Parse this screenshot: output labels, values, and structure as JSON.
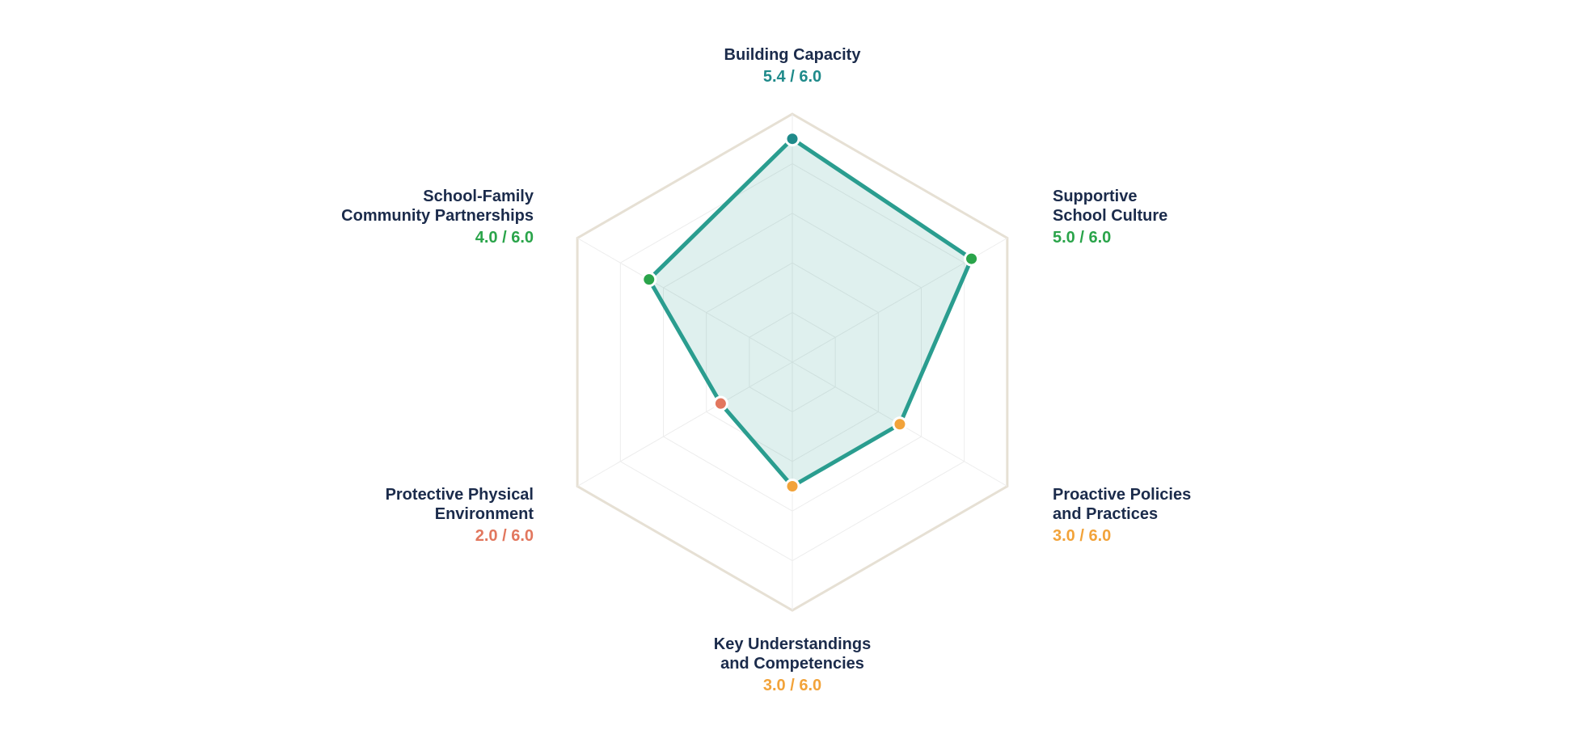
{
  "colors": {
    "outline": "#e6e0d4",
    "grid": "#ededed",
    "series_line": "#2a9d8f",
    "series_fill": "#2a9d8f",
    "label_text": "#1b2b4b",
    "teal": "#1f8a8a",
    "green": "#2aa44a",
    "orange": "#f2a33a",
    "salmon": "#e2775e"
  },
  "chart_data": {
    "type": "radar",
    "title": "",
    "max": 6,
    "grid_levels": 5,
    "legend": "none",
    "axes": [
      {
        "label_lines": [
          "Building Capacity"
        ],
        "value": 5.4,
        "score_text": "5.4 / 6.0",
        "color": "#1f8a8a"
      },
      {
        "label_lines": [
          "Supportive",
          "School Culture"
        ],
        "value": 5.0,
        "score_text": "5.0 / 6.0",
        "color": "#2aa44a"
      },
      {
        "label_lines": [
          "Proactive Policies",
          "and Practices"
        ],
        "value": 3.0,
        "score_text": "3.0 / 6.0",
        "color": "#f2a33a"
      },
      {
        "label_lines": [
          "Key Understandings",
          "and Competencies"
        ],
        "value": 3.0,
        "score_text": "3.0 / 6.0",
        "color": "#f2a33a"
      },
      {
        "label_lines": [
          "Protective Physical",
          "Environment"
        ],
        "value": 2.0,
        "score_text": "2.0 / 6.0",
        "color": "#e2775e"
      },
      {
        "label_lines": [
          "School-Family",
          "Community Partnerships"
        ],
        "value": 4.0,
        "score_text": "4.0 / 6.0",
        "color": "#2aa44a"
      }
    ]
  }
}
